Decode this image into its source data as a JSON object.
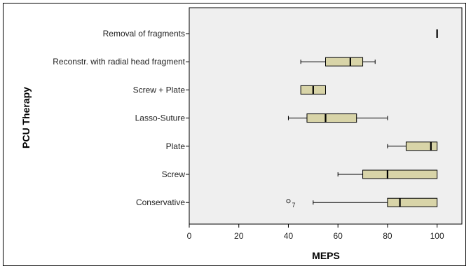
{
  "chart_data": {
    "type": "boxplot",
    "orientation": "horizontal",
    "xlabel": "MEPS",
    "ylabel": "PCU Therapy",
    "xlim": [
      0,
      110
    ],
    "xticks": [
      0,
      20,
      40,
      60,
      80,
      100
    ],
    "grid": false,
    "box_color": "#d8d4a8",
    "categories": [
      "Removal of fragments",
      "Reconstr. with radial head fragment",
      "Screw + Plate",
      "Lasso-Suture",
      "Plate",
      "Screw",
      "Conservative"
    ],
    "boxes": [
      {
        "category": "Removal of fragments",
        "whisker_low": 100,
        "q1": 100,
        "median": 100,
        "q3": 100,
        "whisker_high": 100,
        "outliers": []
      },
      {
        "category": "Reconstr. with radial head fragment",
        "whisker_low": 45,
        "q1": 55,
        "median": 65,
        "q3": 70,
        "whisker_high": 75,
        "outliers": []
      },
      {
        "category": "Screw + Plate",
        "whisker_low": 45,
        "q1": 45,
        "median": 50,
        "q3": 55,
        "whisker_high": 55,
        "outliers": []
      },
      {
        "category": "Lasso-Suture",
        "whisker_low": 40,
        "q1": 47.5,
        "median": 55,
        "q3": 67.5,
        "whisker_high": 80,
        "outliers": []
      },
      {
        "category": "Plate",
        "whisker_low": 80,
        "q1": 87.5,
        "median": 97.5,
        "q3": 100,
        "whisker_high": 100,
        "outliers": []
      },
      {
        "category": "Screw",
        "whisker_low": 60,
        "q1": 70,
        "median": 80,
        "q3": 100,
        "whisker_high": 100,
        "outliers": []
      },
      {
        "category": "Conservative",
        "whisker_low": 50,
        "q1": 80,
        "median": 85,
        "q3": 100,
        "whisker_high": 100,
        "outliers": [
          {
            "value": 40,
            "label": "7"
          }
        ]
      }
    ]
  }
}
